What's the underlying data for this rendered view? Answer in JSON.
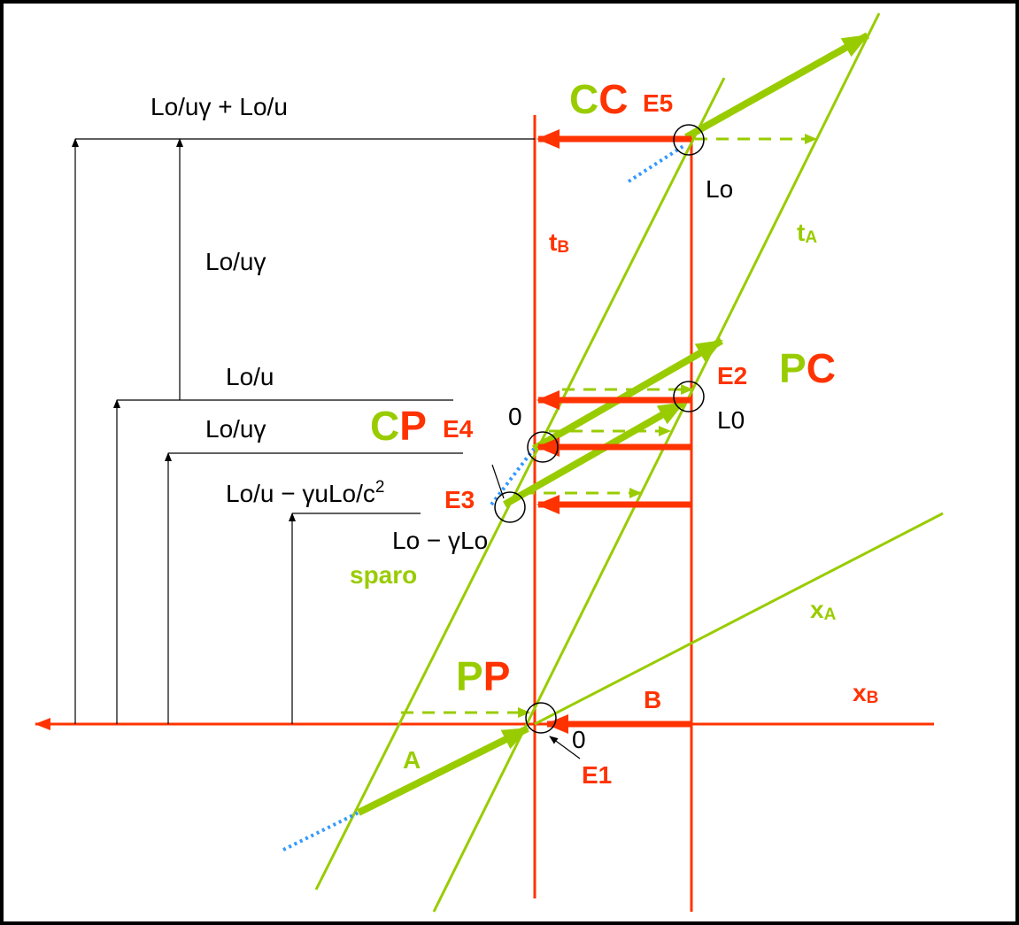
{
  "labels": {
    "top_total": "Lo/uγ + Lo/u",
    "cc": [
      "C",
      "C"
    ],
    "e5": "E5",
    "lo_top": "Lo",
    "tb": [
      "t",
      "B"
    ],
    "ta": [
      "t",
      "A"
    ],
    "lo_u_gamma_1": "Lo/uγ",
    "lo_u": "Lo/u",
    "e2": "E2",
    "pc": [
      "P",
      "C"
    ],
    "lo_u_gamma_2": "Lo/uγ",
    "zero_e4": "0",
    "cp": [
      "C",
      "P"
    ],
    "e4": "E4",
    "l0": "L0",
    "e3_time": [
      "Lo/u − γuLo/c",
      "2"
    ],
    "e3": "E3",
    "lo_minus": "Lo − γLo",
    "sparo": "sparo",
    "xa": [
      "x",
      "A"
    ],
    "pp": [
      "P",
      "P"
    ],
    "xb": [
      "x",
      "B"
    ],
    "b": "B",
    "zero_e1": "0",
    "a": "A",
    "e1": "E1"
  }
}
